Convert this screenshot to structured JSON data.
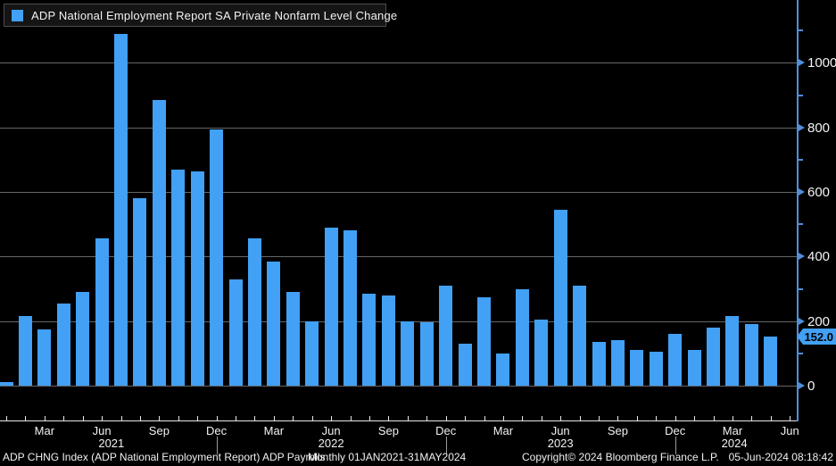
{
  "window": {
    "background": "#000000"
  },
  "colors": {
    "bar_blue": "#42a0f5",
    "axis_blue": "#4f8fd9",
    "gridline_gray": "#666666",
    "x_axis_white": "#e6e6e6",
    "tag_text": "#000000"
  },
  "legend": {
    "label": "ADP National Employment Report SA Private Nonfarm Level Change"
  },
  "y_axis": {
    "tick_labels": [
      "1000",
      "800",
      "600",
      "400",
      "200",
      "0"
    ],
    "last_value_label": "152.0"
  },
  "x_axis": {
    "tick_labels": [
      {
        "label": "Mar",
        "month_index": 2
      },
      {
        "label": "Jun",
        "month_index": 5
      },
      {
        "label": "Sep",
        "month_index": 8
      },
      {
        "label": "Dec",
        "month_index": 11
      },
      {
        "label": "Mar",
        "month_index": 14
      },
      {
        "label": "Jun",
        "month_index": 17
      },
      {
        "label": "Sep",
        "month_index": 20
      },
      {
        "label": "Dec",
        "month_index": 23
      },
      {
        "label": "Mar",
        "month_index": 26
      },
      {
        "label": "Jun",
        "month_index": 29
      },
      {
        "label": "Sep",
        "month_index": 32
      },
      {
        "label": "Dec",
        "month_index": 35
      },
      {
        "label": "Mar",
        "month_index": 38
      },
      {
        "label": "Jun",
        "month_index": 41
      }
    ],
    "year_labels": [
      {
        "label": "2021",
        "month_index": 5.5
      },
      {
        "label": "2022",
        "month_index": 17
      },
      {
        "label": "2023",
        "month_index": 29
      },
      {
        "label": "2024",
        "month_index": 38.1
      }
    ],
    "year_divider_indices": [
      11,
      23,
      35
    ]
  },
  "chart_data": {
    "type": "bar",
    "title": "ADP National Employment Report SA Private Nonfarm Level Change",
    "x": [
      "Jan 2021",
      "Feb 2021",
      "Mar 2021",
      "Apr 2021",
      "May 2021",
      "Jun 2021",
      "Jul 2021",
      "Aug 2021",
      "Sep 2021",
      "Oct 2021",
      "Nov 2021",
      "Dec 2021",
      "Jan 2022",
      "Feb 2022",
      "Mar 2022",
      "Apr 2022",
      "May 2022",
      "Jun 2022",
      "Jul 2022",
      "Aug 2022",
      "Sep 2022",
      "Oct 2022",
      "Nov 2022",
      "Dec 2022",
      "Jan 2023",
      "Feb 2023",
      "Mar 2023",
      "Apr 2023",
      "May 2023",
      "Jun 2023",
      "Jul 2023",
      "Aug 2023",
      "Sep 2023",
      "Oct 2023",
      "Nov 2023",
      "Dec 2023",
      "Jan 2024",
      "Feb 2024",
      "Mar 2024",
      "Apr 2024",
      "May 2024"
    ],
    "values": [
      10,
      215,
      175,
      255,
      290,
      455,
      1090,
      580,
      885,
      670,
      665,
      795,
      330,
      455,
      385,
      290,
      200,
      490,
      480,
      285,
      280,
      200,
      195,
      310,
      130,
      275,
      100,
      300,
      205,
      545,
      310,
      135,
      140,
      110,
      105,
      160,
      110,
      180,
      215,
      190,
      152
    ],
    "last_value": 152.0,
    "ylim": [
      0,
      1100
    ],
    "y_ticks": [
      0,
      200,
      400,
      600,
      800,
      1000
    ],
    "y_minor_ticks": [
      100,
      300,
      500,
      700,
      900,
      1100
    ],
    "bar_color": "#42a0f5",
    "grid": "horizontal",
    "legend_position": "top-left"
  },
  "footer": {
    "instrument": "ADP CHNG Index (ADP National Employment Report) ADP Payrolls",
    "period": "Monthly 01JAN2021-31MAY2024",
    "copyright": "Copyright© 2024 Bloomberg Finance L.P.",
    "timestamp": "05-Jun-2024 08:18:42"
  }
}
